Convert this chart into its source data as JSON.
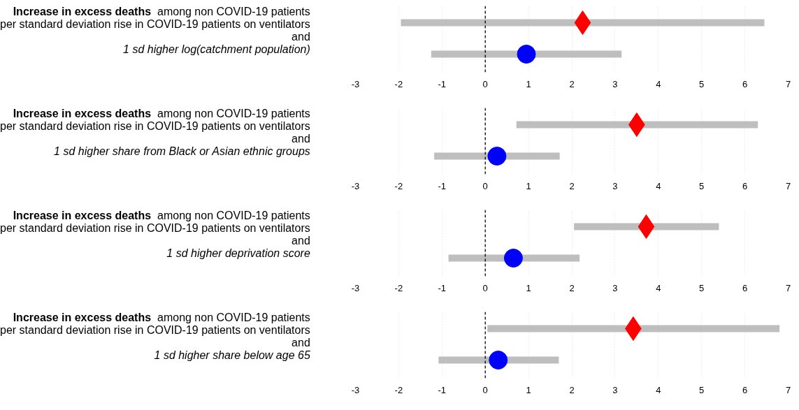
{
  "chart_data": [
    {
      "type": "scatter",
      "orientation": "horizontal",
      "annotations": [
        "Increase in excess deaths",
        "among non COVID-19 patients",
        "per standard deviation rise in COVID-19 patients on ventilators",
        "and",
        "1 sd higher log(catchment population)"
      ],
      "categories": [
        null,
        null
      ],
      "series": [
        {
          "type": "bar",
          "color": "#bebebe",
          "base": [
            -1.95,
            -1.25
          ],
          "values": [
            8.4,
            4.4
          ]
        },
        {
          "color": "#ff0000",
          "marker": "diamond",
          "values": [
            2.25,
            null
          ]
        },
        {
          "color": "#0000ff",
          "marker": "circle",
          "values": [
            null,
            0.95
          ]
        }
      ],
      "xlim": [
        -3,
        7
      ],
      "xticks": [
        -3,
        -2,
        -1,
        0,
        1,
        2,
        3,
        4,
        5,
        6,
        7
      ],
      "grid": "x",
      "ref_lines": [
        {
          "axis": "x",
          "value": 0,
          "line_style": "dashed"
        }
      ]
    },
    {
      "type": "scatter",
      "orientation": "horizontal",
      "annotations": [
        "Increase in excess deaths",
        "among non COVID-19 patients",
        "per standard deviation rise in COVID-19 patients on ventilators",
        "and",
        "1 sd higher share from Black or Asian ethnic groups"
      ],
      "categories": [
        null,
        null
      ],
      "series": [
        {
          "type": "bar",
          "color": "#bebebe",
          "base": [
            0.72,
            -1.18
          ],
          "values": [
            5.58,
            2.9
          ]
        },
        {
          "color": "#ff0000",
          "marker": "diamond",
          "values": [
            3.5,
            null
          ]
        },
        {
          "color": "#0000ff",
          "marker": "circle",
          "values": [
            null,
            0.27
          ]
        }
      ],
      "xlim": [
        -3,
        7
      ],
      "xticks": [
        -3,
        -2,
        -1,
        0,
        1,
        2,
        3,
        4,
        5,
        6,
        7
      ],
      "grid": "x",
      "ref_lines": [
        {
          "axis": "x",
          "value": 0,
          "line_style": "dashed"
        }
      ]
    },
    {
      "type": "scatter",
      "orientation": "horizontal",
      "annotations": [
        "Increase in excess deaths",
        "among non COVID-19 patients",
        "per standard deviation rise in COVID-19 patients on ventilators",
        "and",
        "1 sd higher deprivation score"
      ],
      "categories": [
        null,
        null
      ],
      "series": [
        {
          "type": "bar",
          "color": "#bebebe",
          "base": [
            2.05,
            -0.85
          ],
          "values": [
            3.35,
            3.03
          ]
        },
        {
          "color": "#ff0000",
          "marker": "diamond",
          "values": [
            3.72,
            null
          ]
        },
        {
          "color": "#0000ff",
          "marker": "circle",
          "values": [
            null,
            0.65
          ]
        }
      ],
      "xlim": [
        -3,
        7
      ],
      "xticks": [
        -3,
        -2,
        -1,
        0,
        1,
        2,
        3,
        4,
        5,
        6,
        7
      ],
      "grid": "x",
      "ref_lines": [
        {
          "axis": "x",
          "value": 0,
          "line_style": "dashed"
        }
      ]
    },
    {
      "type": "scatter",
      "orientation": "horizontal",
      "annotations": [
        "Increase in excess deaths",
        "among non COVID-19 patients",
        "per standard deviation rise in COVID-19 patients on ventilators",
        "and",
        "1 sd higher share below age 65"
      ],
      "categories": [
        null,
        null
      ],
      "series": [
        {
          "type": "bar",
          "color": "#bebebe",
          "base": [
            0.05,
            -1.08
          ],
          "values": [
            6.75,
            2.78
          ]
        },
        {
          "color": "#ff0000",
          "marker": "diamond",
          "values": [
            3.42,
            null
          ]
        },
        {
          "color": "#0000ff",
          "marker": "circle",
          "values": [
            null,
            0.3
          ]
        }
      ],
      "xlim": [
        -3,
        7
      ],
      "xticks": [
        -3,
        -2,
        -1,
        0,
        1,
        2,
        3,
        4,
        5,
        6,
        7
      ],
      "grid": "x",
      "ref_lines": [
        {
          "axis": "x",
          "value": 0,
          "line_style": "dashed"
        }
      ]
    }
  ]
}
